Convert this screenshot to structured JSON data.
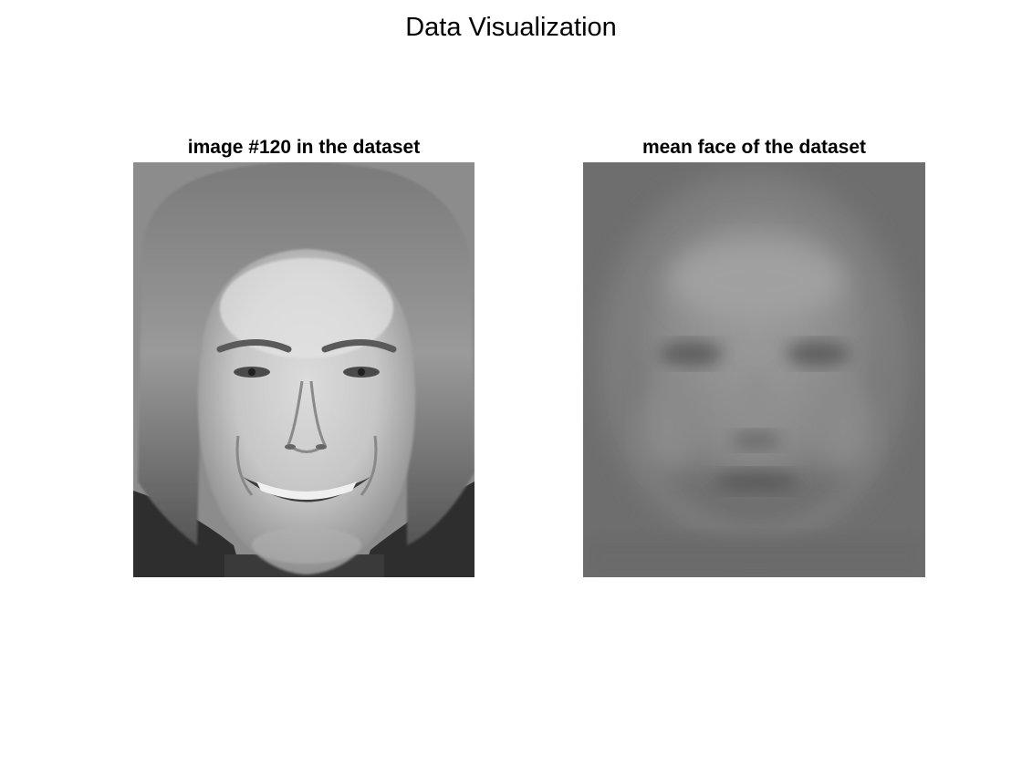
{
  "figure": {
    "title": "Data Visualization"
  },
  "panels": [
    {
      "title": "image #120 in the dataset",
      "image": "grayscale face photo of a smiling young man with shoulder-length hair"
    },
    {
      "title": "mean face of the dataset",
      "image": "blurred grayscale average face"
    }
  ]
}
